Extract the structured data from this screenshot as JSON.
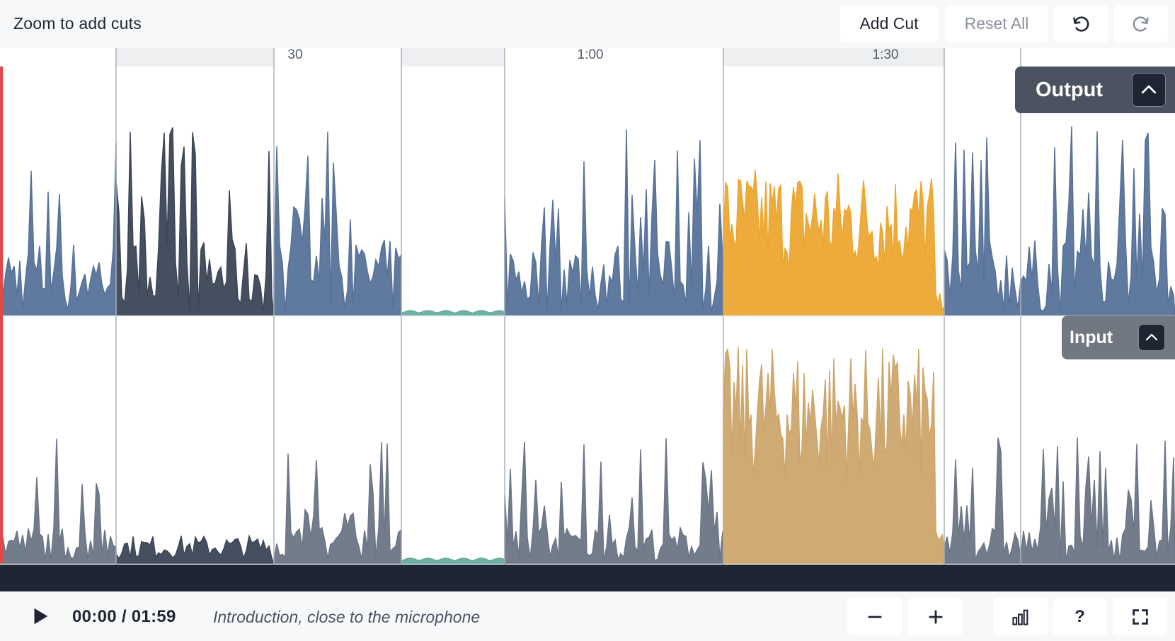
{
  "topbar": {
    "hint": "Zoom to add cuts",
    "add_cut_label": "Add Cut",
    "reset_all_label": "Reset All",
    "undo_icon": "undo-icon",
    "redo_icon": "redo-icon"
  },
  "timeline": {
    "tick_labels": [
      "30",
      "1:00",
      "1:30"
    ]
  },
  "tracks": {
    "output_label": "Output",
    "input_label": "Input",
    "collapse_icon": "chevron-up-icon"
  },
  "colors": {
    "track_blue": "#577299",
    "dark_segment": "#3c4657",
    "orange_segment": "#eca631",
    "input_gray": "#6b7585",
    "input_tan": "#cda56b",
    "silence_teal": "#5fa89a",
    "playhead": "#e2474b"
  },
  "player": {
    "play_icon": "play-icon",
    "time": "00:00 / 01:59",
    "description": "Introduction, close to the microphone",
    "zoom_out_icon": "minus-icon",
    "zoom_in_icon": "plus-icon",
    "stats_icon": "bar-chart-icon",
    "help_label": "?",
    "fullscreen_icon": "fullscreen-icon"
  }
}
